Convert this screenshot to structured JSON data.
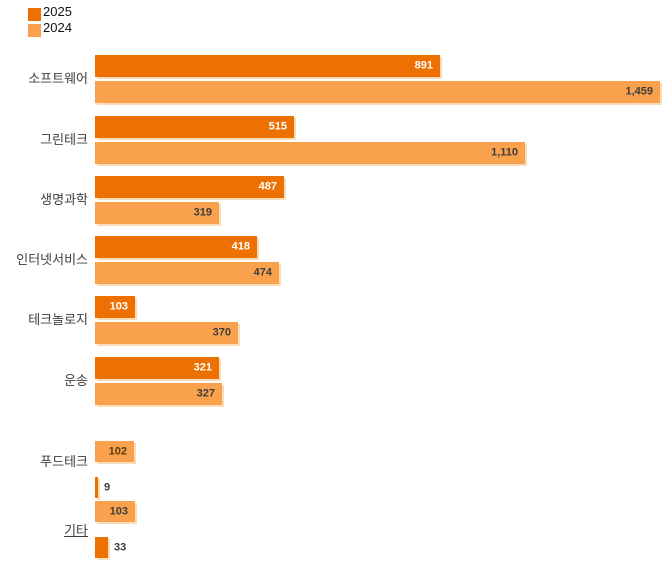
{
  "legend": {
    "items": [
      {
        "label": "2025",
        "color": "#ED7102"
      },
      {
        "label": "2024",
        "color": "#F9A14D"
      }
    ]
  },
  "chart_data": {
    "type": "bar",
    "orientation": "horizontal",
    "title": "",
    "xlabel": "",
    "ylabel": "",
    "xlim": [
      0,
      1500
    ],
    "grid": false,
    "legend_position": "top-left",
    "categories": [
      "소프트웨어",
      "그린테크",
      "생명과학",
      "인터넷서비스",
      "테크놀로지",
      "운송",
      "푸드테크",
      "기타"
    ],
    "series": [
      {
        "name": "2025",
        "color": "#ED7102",
        "values": [
          891,
          515,
          487,
          418,
          103,
          321,
          9,
          33
        ]
      },
      {
        "name": "2024",
        "color": "#F9A14D",
        "values": [
          1459,
          1110,
          319,
          474,
          370,
          327,
          102,
          103
        ]
      }
    ],
    "rows": [
      {
        "category": "소프트웨어",
        "bars": [
          {
            "series": "2025",
            "value": 891,
            "label": "891",
            "label_pos": "inside",
            "label_color": "#FFFFFF"
          },
          {
            "series": "2024",
            "value": 1459,
            "label": "1,459",
            "label_pos": "inside",
            "label_color": "#3E3E3E"
          }
        ]
      },
      {
        "category": "그린테크",
        "bars": [
          {
            "series": "2025",
            "value": 515,
            "label": "515",
            "label_pos": "inside",
            "label_color": "#FFFFFF"
          },
          {
            "series": "2024",
            "value": 1110,
            "label": "1,110",
            "label_pos": "inside",
            "label_color": "#3E3E3E"
          }
        ]
      },
      {
        "category": "생명과학",
        "bars": [
          {
            "series": "2025",
            "value": 487,
            "label": "487",
            "label_pos": "inside",
            "label_color": "#FFFFFF"
          },
          {
            "series": "2024",
            "value": 319,
            "label": "319",
            "label_pos": "inside",
            "label_color": "#3E3E3E"
          }
        ]
      },
      {
        "category": "인터넷서비스",
        "bars": [
          {
            "series": "2025",
            "value": 418,
            "label": "418",
            "label_pos": "inside",
            "label_color": "#FFFFFF"
          },
          {
            "series": "2024",
            "value": 474,
            "label": "474",
            "label_pos": "inside",
            "label_color": "#3E3E3E"
          }
        ]
      },
      {
        "category": "테크놀로지",
        "bars": [
          {
            "series": "2025",
            "value": 103,
            "label": "103",
            "label_pos": "inside",
            "label_color": "#FFFFFF"
          },
          {
            "series": "2024",
            "value": 370,
            "label": "370",
            "label_pos": "inside",
            "label_color": "#3E3E3E"
          }
        ]
      },
      {
        "category": "운송",
        "bars": [
          {
            "series": "2025",
            "value": 321,
            "label": "321",
            "label_pos": "inside",
            "label_color": "#FFFFFF"
          },
          {
            "series": "2024",
            "value": 327,
            "label": "327",
            "label_pos": "inside",
            "label_color": "#3E3E3E"
          }
        ]
      },
      {
        "category": "푸드테크",
        "bars": [
          {
            "series": "2024",
            "value": 102,
            "label": "102",
            "label_pos": "inside",
            "label_color": "#5A3A12"
          },
          {
            "series": "2025",
            "value": 9,
            "label": "9",
            "label_pos": "outside",
            "label_color": "#3E3E3E"
          }
        ]
      },
      {
        "category": "기타",
        "label_underline": true,
        "bars": [
          {
            "series": "2024",
            "value": 103,
            "label": "103",
            "label_pos": "inside",
            "label_color": "#3E3E3E"
          },
          {
            "series": "2025",
            "value": 33,
            "label": "33",
            "label_pos": "outside",
            "label_color": "#3E3E3E"
          }
        ]
      }
    ]
  }
}
